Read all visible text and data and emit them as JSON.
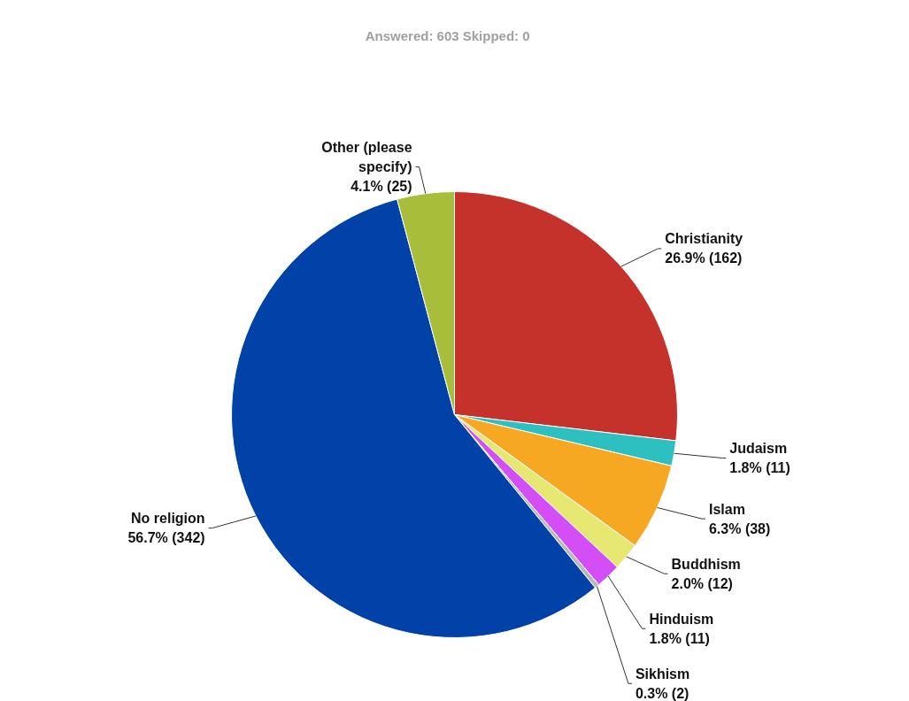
{
  "chart_data": {
    "type": "pie",
    "title": "Answered: 603     Skipped: 0",
    "categories": [
      "Christianity",
      "Judaism",
      "Islam",
      "Buddhism",
      "Hinduism",
      "Sikhism",
      "No religion",
      "Other (please specify)"
    ],
    "values": [
      162,
      11,
      38,
      12,
      11,
      2,
      342,
      25
    ],
    "value_labels": [
      "26.9% (162)",
      "1.8% (11)",
      "6.3% (38)",
      "2.0% (12)",
      "1.8% (11)",
      "0.3% (2)",
      "56.7% (342)",
      "4.1% (25)"
    ],
    "colors": [
      "#c4322b",
      "#2ec0c0",
      "#f6a823",
      "#e6e872",
      "#d34ff5",
      "#b8b8c0",
      "#0042a8",
      "#a8bd3a"
    ]
  }
}
